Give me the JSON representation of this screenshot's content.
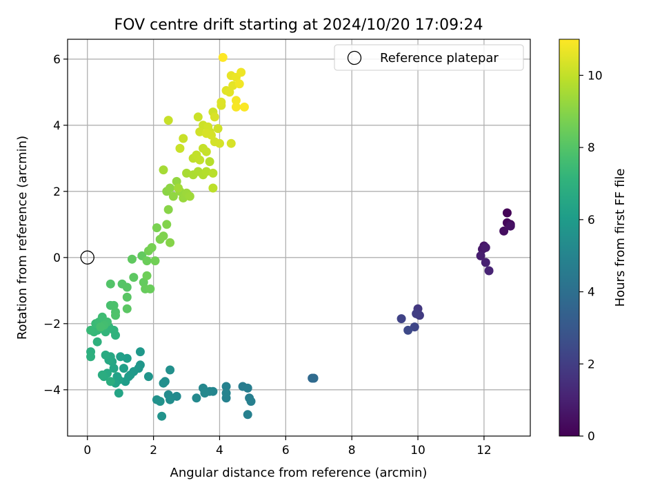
{
  "chart_data": {
    "type": "scatter",
    "title": "FOV centre drift starting at 2024/10/20 17:09:24",
    "xlabel": "Angular distance from reference (arcmin)",
    "ylabel": "Rotation from reference (arcmin)",
    "xlim": [
      -0.6,
      13.4
    ],
    "ylim": [
      -5.4,
      6.6
    ],
    "xticks": [
      0,
      2,
      4,
      6,
      8,
      10,
      12
    ],
    "yticks": [
      -4,
      -2,
      0,
      2,
      4,
      6
    ],
    "grid": true,
    "legend": {
      "placement": "top-right",
      "entries": [
        "Reference platepar"
      ]
    },
    "reference_point": {
      "x": 0,
      "y": 0,
      "label": "Reference platepar"
    },
    "colorbar": {
      "label": "Hours from first FF file",
      "range": [
        0,
        11
      ],
      "ticks": [
        0,
        2,
        4,
        6,
        8,
        10
      ],
      "colormap": "viridis"
    },
    "points": [
      {
        "x": 12.7,
        "y": 1.35,
        "c": 0.1
      },
      {
        "x": 12.7,
        "y": 1.05,
        "c": 0.2
      },
      {
        "x": 12.8,
        "y": 1.0,
        "c": 0.3
      },
      {
        "x": 12.6,
        "y": 0.8,
        "c": 0.4
      },
      {
        "x": 12.8,
        "y": 0.95,
        "c": 0.5
      },
      {
        "x": 12.0,
        "y": 0.35,
        "c": 0.6
      },
      {
        "x": 11.95,
        "y": 0.25,
        "c": 0.7
      },
      {
        "x": 12.05,
        "y": 0.3,
        "c": 0.8
      },
      {
        "x": 11.9,
        "y": 0.05,
        "c": 0.9
      },
      {
        "x": 12.05,
        "y": -0.15,
        "c": 1.0
      },
      {
        "x": 12.15,
        "y": -0.4,
        "c": 1.1
      },
      {
        "x": 10.0,
        "y": -1.55,
        "c": 1.8
      },
      {
        "x": 10.05,
        "y": -1.75,
        "c": 1.9
      },
      {
        "x": 9.95,
        "y": -1.7,
        "c": 2.0
      },
      {
        "x": 9.5,
        "y": -1.85,
        "c": 2.2
      },
      {
        "x": 9.9,
        "y": -2.1,
        "c": 2.3
      },
      {
        "x": 9.7,
        "y": -2.2,
        "c": 2.4
      },
      {
        "x": 6.8,
        "y": -3.65,
        "c": 3.7
      },
      {
        "x": 6.85,
        "y": -3.65,
        "c": 3.8
      },
      {
        "x": 4.7,
        "y": -3.9,
        "c": 4.6
      },
      {
        "x": 4.85,
        "y": -3.95,
        "c": 4.65
      },
      {
        "x": 4.9,
        "y": -4.25,
        "c": 4.7
      },
      {
        "x": 4.95,
        "y": -4.35,
        "c": 4.75
      },
      {
        "x": 4.85,
        "y": -4.75,
        "c": 4.8
      },
      {
        "x": 4.2,
        "y": -3.9,
        "c": 4.85
      },
      {
        "x": 4.2,
        "y": -4.25,
        "c": 4.9
      },
      {
        "x": 4.2,
        "y": -4.1,
        "c": 4.95
      },
      {
        "x": 3.8,
        "y": -4.05,
        "c": 5.0
      },
      {
        "x": 3.7,
        "y": -4.05,
        "c": 5.05
      },
      {
        "x": 3.5,
        "y": -3.95,
        "c": 5.1
      },
      {
        "x": 3.55,
        "y": -4.1,
        "c": 5.15
      },
      {
        "x": 3.3,
        "y": -4.25,
        "c": 5.2
      },
      {
        "x": 2.7,
        "y": -4.2,
        "c": 5.25
      },
      {
        "x": 2.45,
        "y": -4.15,
        "c": 5.3
      },
      {
        "x": 2.5,
        "y": -4.3,
        "c": 5.35
      },
      {
        "x": 2.35,
        "y": -3.75,
        "c": 5.4
      },
      {
        "x": 2.3,
        "y": -3.8,
        "c": 5.45
      },
      {
        "x": 2.5,
        "y": -3.4,
        "c": 5.5
      },
      {
        "x": 2.1,
        "y": -4.3,
        "c": 5.55
      },
      {
        "x": 2.2,
        "y": -4.35,
        "c": 5.6
      },
      {
        "x": 2.25,
        "y": -4.8,
        "c": 5.65
      },
      {
        "x": 1.85,
        "y": -3.6,
        "c": 5.7
      },
      {
        "x": 1.6,
        "y": -3.25,
        "c": 5.75
      },
      {
        "x": 1.55,
        "y": -3.35,
        "c": 5.8
      },
      {
        "x": 1.6,
        "y": -2.85,
        "c": 5.85
      },
      {
        "x": 1.4,
        "y": -3.45,
        "c": 5.9
      },
      {
        "x": 1.3,
        "y": -3.55,
        "c": 5.95
      },
      {
        "x": 1.25,
        "y": -3.6,
        "c": 6.0
      },
      {
        "x": 1.15,
        "y": -3.75,
        "c": 6.05
      },
      {
        "x": 1.2,
        "y": -3.05,
        "c": 6.1
      },
      {
        "x": 1.1,
        "y": -3.35,
        "c": 6.15
      },
      {
        "x": 1.0,
        "y": -3.0,
        "c": 6.2
      },
      {
        "x": 0.95,
        "y": -3.7,
        "c": 6.25
      },
      {
        "x": 0.9,
        "y": -3.6,
        "c": 6.3
      },
      {
        "x": 0.85,
        "y": -3.8,
        "c": 6.35
      },
      {
        "x": 0.95,
        "y": -4.1,
        "c": 6.4
      },
      {
        "x": 0.8,
        "y": -3.35,
        "c": 6.45
      },
      {
        "x": 0.75,
        "y": -3.15,
        "c": 6.5
      },
      {
        "x": 0.7,
        "y": -3.0,
        "c": 6.55
      },
      {
        "x": 0.65,
        "y": -3.1,
        "c": 6.6
      },
      {
        "x": 0.6,
        "y": -3.5,
        "c": 6.65
      },
      {
        "x": 0.55,
        "y": -2.95,
        "c": 6.7
      },
      {
        "x": 0.5,
        "y": -3.6,
        "c": 6.75
      },
      {
        "x": 0.45,
        "y": -3.55,
        "c": 6.8
      },
      {
        "x": 0.7,
        "y": -3.75,
        "c": 6.85
      },
      {
        "x": 0.1,
        "y": -2.85,
        "c": 6.9
      },
      {
        "x": 0.1,
        "y": -3.0,
        "c": 6.95
      },
      {
        "x": 0.3,
        "y": -2.55,
        "c": 7.0
      },
      {
        "x": 0.85,
        "y": -2.35,
        "c": 7.05
      },
      {
        "x": 0.8,
        "y": -2.2,
        "c": 7.1
      },
      {
        "x": 0.65,
        "y": -2.1,
        "c": 7.15
      },
      {
        "x": 0.55,
        "y": -2.25,
        "c": 7.2
      },
      {
        "x": 0.45,
        "y": -2.15,
        "c": 7.25
      },
      {
        "x": 0.3,
        "y": -2.2,
        "c": 7.3
      },
      {
        "x": 0.2,
        "y": -2.25,
        "c": 7.35
      },
      {
        "x": 0.1,
        "y": -2.2,
        "c": 7.4
      },
      {
        "x": 0.25,
        "y": -2.0,
        "c": 7.45
      },
      {
        "x": 0.35,
        "y": -1.95,
        "c": 7.5
      },
      {
        "x": 0.45,
        "y": -1.8,
        "c": 7.55
      },
      {
        "x": 0.6,
        "y": -1.95,
        "c": 7.6
      },
      {
        "x": 0.5,
        "y": -2.05,
        "c": 7.65
      },
      {
        "x": 0.4,
        "y": -2.1,
        "c": 7.7
      },
      {
        "x": 0.7,
        "y": -1.45,
        "c": 7.75
      },
      {
        "x": 0.8,
        "y": -1.45,
        "c": 7.8
      },
      {
        "x": 0.85,
        "y": -1.65,
        "c": 7.85
      },
      {
        "x": 0.85,
        "y": -1.75,
        "c": 7.9
      },
      {
        "x": 0.7,
        "y": -0.8,
        "c": 7.95
      },
      {
        "x": 1.05,
        "y": -0.8,
        "c": 8.0
      },
      {
        "x": 1.2,
        "y": -0.9,
        "c": 8.05
      },
      {
        "x": 1.2,
        "y": -1.2,
        "c": 8.1
      },
      {
        "x": 1.2,
        "y": -1.55,
        "c": 8.15
      },
      {
        "x": 1.4,
        "y": -0.6,
        "c": 8.2
      },
      {
        "x": 1.35,
        "y": -0.05,
        "c": 8.25
      },
      {
        "x": 1.65,
        "y": 0.05,
        "c": 8.3
      },
      {
        "x": 1.7,
        "y": -0.75,
        "c": 8.35
      },
      {
        "x": 1.75,
        "y": -0.95,
        "c": 8.4
      },
      {
        "x": 1.9,
        "y": -0.95,
        "c": 8.45
      },
      {
        "x": 1.8,
        "y": -0.1,
        "c": 8.5
      },
      {
        "x": 1.8,
        "y": -0.55,
        "c": 8.55
      },
      {
        "x": 2.05,
        "y": -0.1,
        "c": 8.6
      },
      {
        "x": 1.85,
        "y": 0.2,
        "c": 8.65
      },
      {
        "x": 1.95,
        "y": 0.3,
        "c": 8.7
      },
      {
        "x": 2.1,
        "y": 0.9,
        "c": 8.75
      },
      {
        "x": 2.2,
        "y": 0.55,
        "c": 8.8
      },
      {
        "x": 2.3,
        "y": 0.65,
        "c": 8.85
      },
      {
        "x": 2.4,
        "y": 1.0,
        "c": 8.9
      },
      {
        "x": 2.5,
        "y": 0.45,
        "c": 8.95
      },
      {
        "x": 2.45,
        "y": 1.45,
        "c": 9.0
      },
      {
        "x": 2.4,
        "y": 2.0,
        "c": 9.05
      },
      {
        "x": 2.5,
        "y": 2.1,
        "c": 9.1
      },
      {
        "x": 2.6,
        "y": 1.85,
        "c": 9.15
      },
      {
        "x": 2.7,
        "y": 2.3,
        "c": 9.2
      },
      {
        "x": 2.8,
        "y": 2.0,
        "c": 9.25
      },
      {
        "x": 2.9,
        "y": 1.8,
        "c": 9.3
      },
      {
        "x": 3.0,
        "y": 1.95,
        "c": 9.35
      },
      {
        "x": 3.1,
        "y": 1.85,
        "c": 9.4
      },
      {
        "x": 2.75,
        "y": 2.1,
        "c": 9.45
      },
      {
        "x": 2.3,
        "y": 2.65,
        "c": 9.5
      },
      {
        "x": 3.0,
        "y": 2.55,
        "c": 9.55
      },
      {
        "x": 3.2,
        "y": 2.5,
        "c": 9.6
      },
      {
        "x": 3.35,
        "y": 2.6,
        "c": 9.65
      },
      {
        "x": 3.5,
        "y": 2.5,
        "c": 9.7
      },
      {
        "x": 3.6,
        "y": 2.6,
        "c": 9.75
      },
      {
        "x": 3.7,
        "y": 2.9,
        "c": 9.8
      },
      {
        "x": 3.8,
        "y": 2.55,
        "c": 9.85
      },
      {
        "x": 3.8,
        "y": 2.1,
        "c": 9.9
      },
      {
        "x": 3.2,
        "y": 3.0,
        "c": 9.95
      },
      {
        "x": 3.3,
        "y": 3.1,
        "c": 10.0
      },
      {
        "x": 3.4,
        "y": 2.95,
        "c": 10.02
      },
      {
        "x": 3.5,
        "y": 3.3,
        "c": 10.04
      },
      {
        "x": 3.6,
        "y": 3.2,
        "c": 10.06
      },
      {
        "x": 2.45,
        "y": 4.15,
        "c": 10.08
      },
      {
        "x": 2.9,
        "y": 3.6,
        "c": 10.1
      },
      {
        "x": 2.8,
        "y": 3.3,
        "c": 10.12
      },
      {
        "x": 3.35,
        "y": 4.25,
        "c": 10.14
      },
      {
        "x": 3.5,
        "y": 4.0,
        "c": 10.16
      },
      {
        "x": 3.7,
        "y": 3.8,
        "c": 10.18
      },
      {
        "x": 3.8,
        "y": 4.4,
        "c": 10.2
      },
      {
        "x": 3.95,
        "y": 3.9,
        "c": 10.22
      },
      {
        "x": 3.4,
        "y": 3.8,
        "c": 10.24
      },
      {
        "x": 3.65,
        "y": 3.95,
        "c": 10.26
      },
      {
        "x": 3.85,
        "y": 3.5,
        "c": 10.28
      },
      {
        "x": 4.0,
        "y": 3.45,
        "c": 10.3
      },
      {
        "x": 3.75,
        "y": 3.7,
        "c": 10.32
      },
      {
        "x": 3.6,
        "y": 3.75,
        "c": 10.34
      },
      {
        "x": 4.35,
        "y": 3.45,
        "c": 10.36
      },
      {
        "x": 3.85,
        "y": 4.25,
        "c": 10.38
      },
      {
        "x": 4.05,
        "y": 4.6,
        "c": 10.4
      },
      {
        "x": 4.05,
        "y": 4.7,
        "c": 10.45
      },
      {
        "x": 4.2,
        "y": 5.05,
        "c": 10.5
      },
      {
        "x": 4.3,
        "y": 5.0,
        "c": 10.55
      },
      {
        "x": 4.4,
        "y": 5.2,
        "c": 10.6
      },
      {
        "x": 4.35,
        "y": 5.5,
        "c": 10.65
      },
      {
        "x": 4.5,
        "y": 5.45,
        "c": 10.7
      },
      {
        "x": 4.65,
        "y": 5.6,
        "c": 10.75
      },
      {
        "x": 4.6,
        "y": 5.25,
        "c": 10.8
      },
      {
        "x": 4.5,
        "y": 4.75,
        "c": 10.85
      },
      {
        "x": 4.5,
        "y": 4.55,
        "c": 10.9
      },
      {
        "x": 4.75,
        "y": 4.55,
        "c": 10.95
      },
      {
        "x": 4.1,
        "y": 6.05,
        "c": 11.0
      }
    ]
  }
}
